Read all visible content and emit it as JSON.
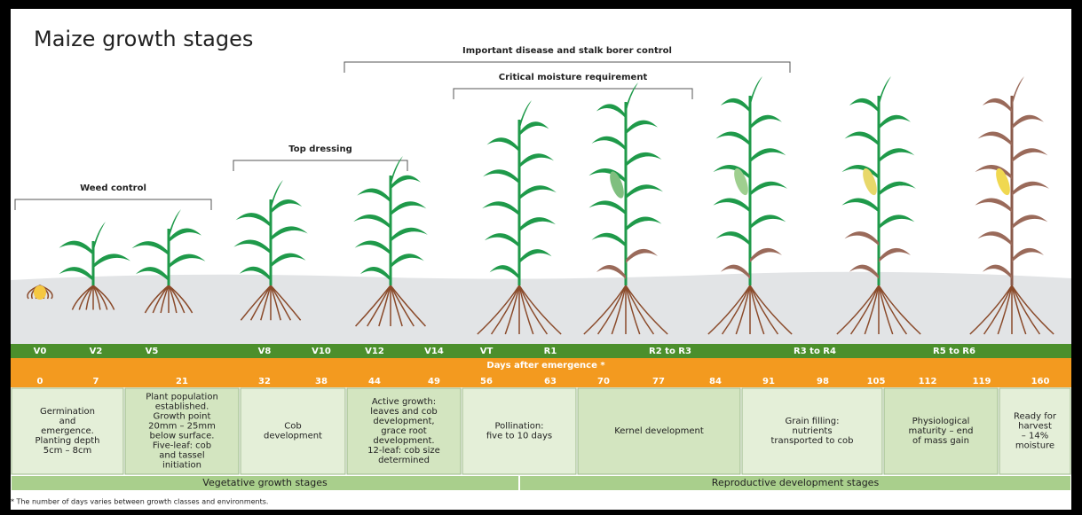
{
  "header": {
    "title": "Maize growth stages"
  },
  "brackets": [
    {
      "label": "Important disease and stalk borer control"
    },
    {
      "label": "Critical moisture requirement"
    },
    {
      "label": "Top dressing"
    },
    {
      "label": "Weed control"
    }
  ],
  "stages": [
    "V0",
    "V2",
    "V5",
    "V8",
    "V10",
    "V12",
    "V14",
    "VT",
    "R1",
    "R2 to R3",
    "R3 to R4",
    "R5 to R6"
  ],
  "days_label": "Days after emergence *",
  "days": [
    "0",
    "7",
    "21",
    "32",
    "38",
    "44",
    "49",
    "56",
    "63",
    "70",
    "77",
    "84",
    "91",
    "98",
    "105",
    "112",
    "119",
    "160"
  ],
  "descriptions": [
    [
      "Germination",
      "and",
      "emergence.",
      "Planting depth",
      "5cm – 8cm"
    ],
    [
      "Plant population",
      "established.",
      "Growth point",
      "20mm – 25mm",
      "below surface.",
      "Five-leaf: cob",
      "and tassel",
      "initiation"
    ],
    [
      "Cob",
      "development"
    ],
    [
      "Active growth:",
      "leaves and cob",
      "development,",
      "grace root",
      "development.",
      "12-leaf: cob size",
      "determined"
    ],
    [
      "Pollination:",
      "five to 10 days"
    ],
    [
      "Kernel development"
    ],
    [
      "Grain filling:",
      "nutrients",
      "transported to cob"
    ],
    [
      "Physiological",
      "maturity – end",
      "of mass gain"
    ],
    [
      "Ready for",
      "harvest",
      "– 14%",
      "moisture"
    ]
  ],
  "phases": [
    "Vegetative growth stages",
    "Reproductive development stages"
  ],
  "footnote": "* The number of days varies between growth classes and environments."
}
